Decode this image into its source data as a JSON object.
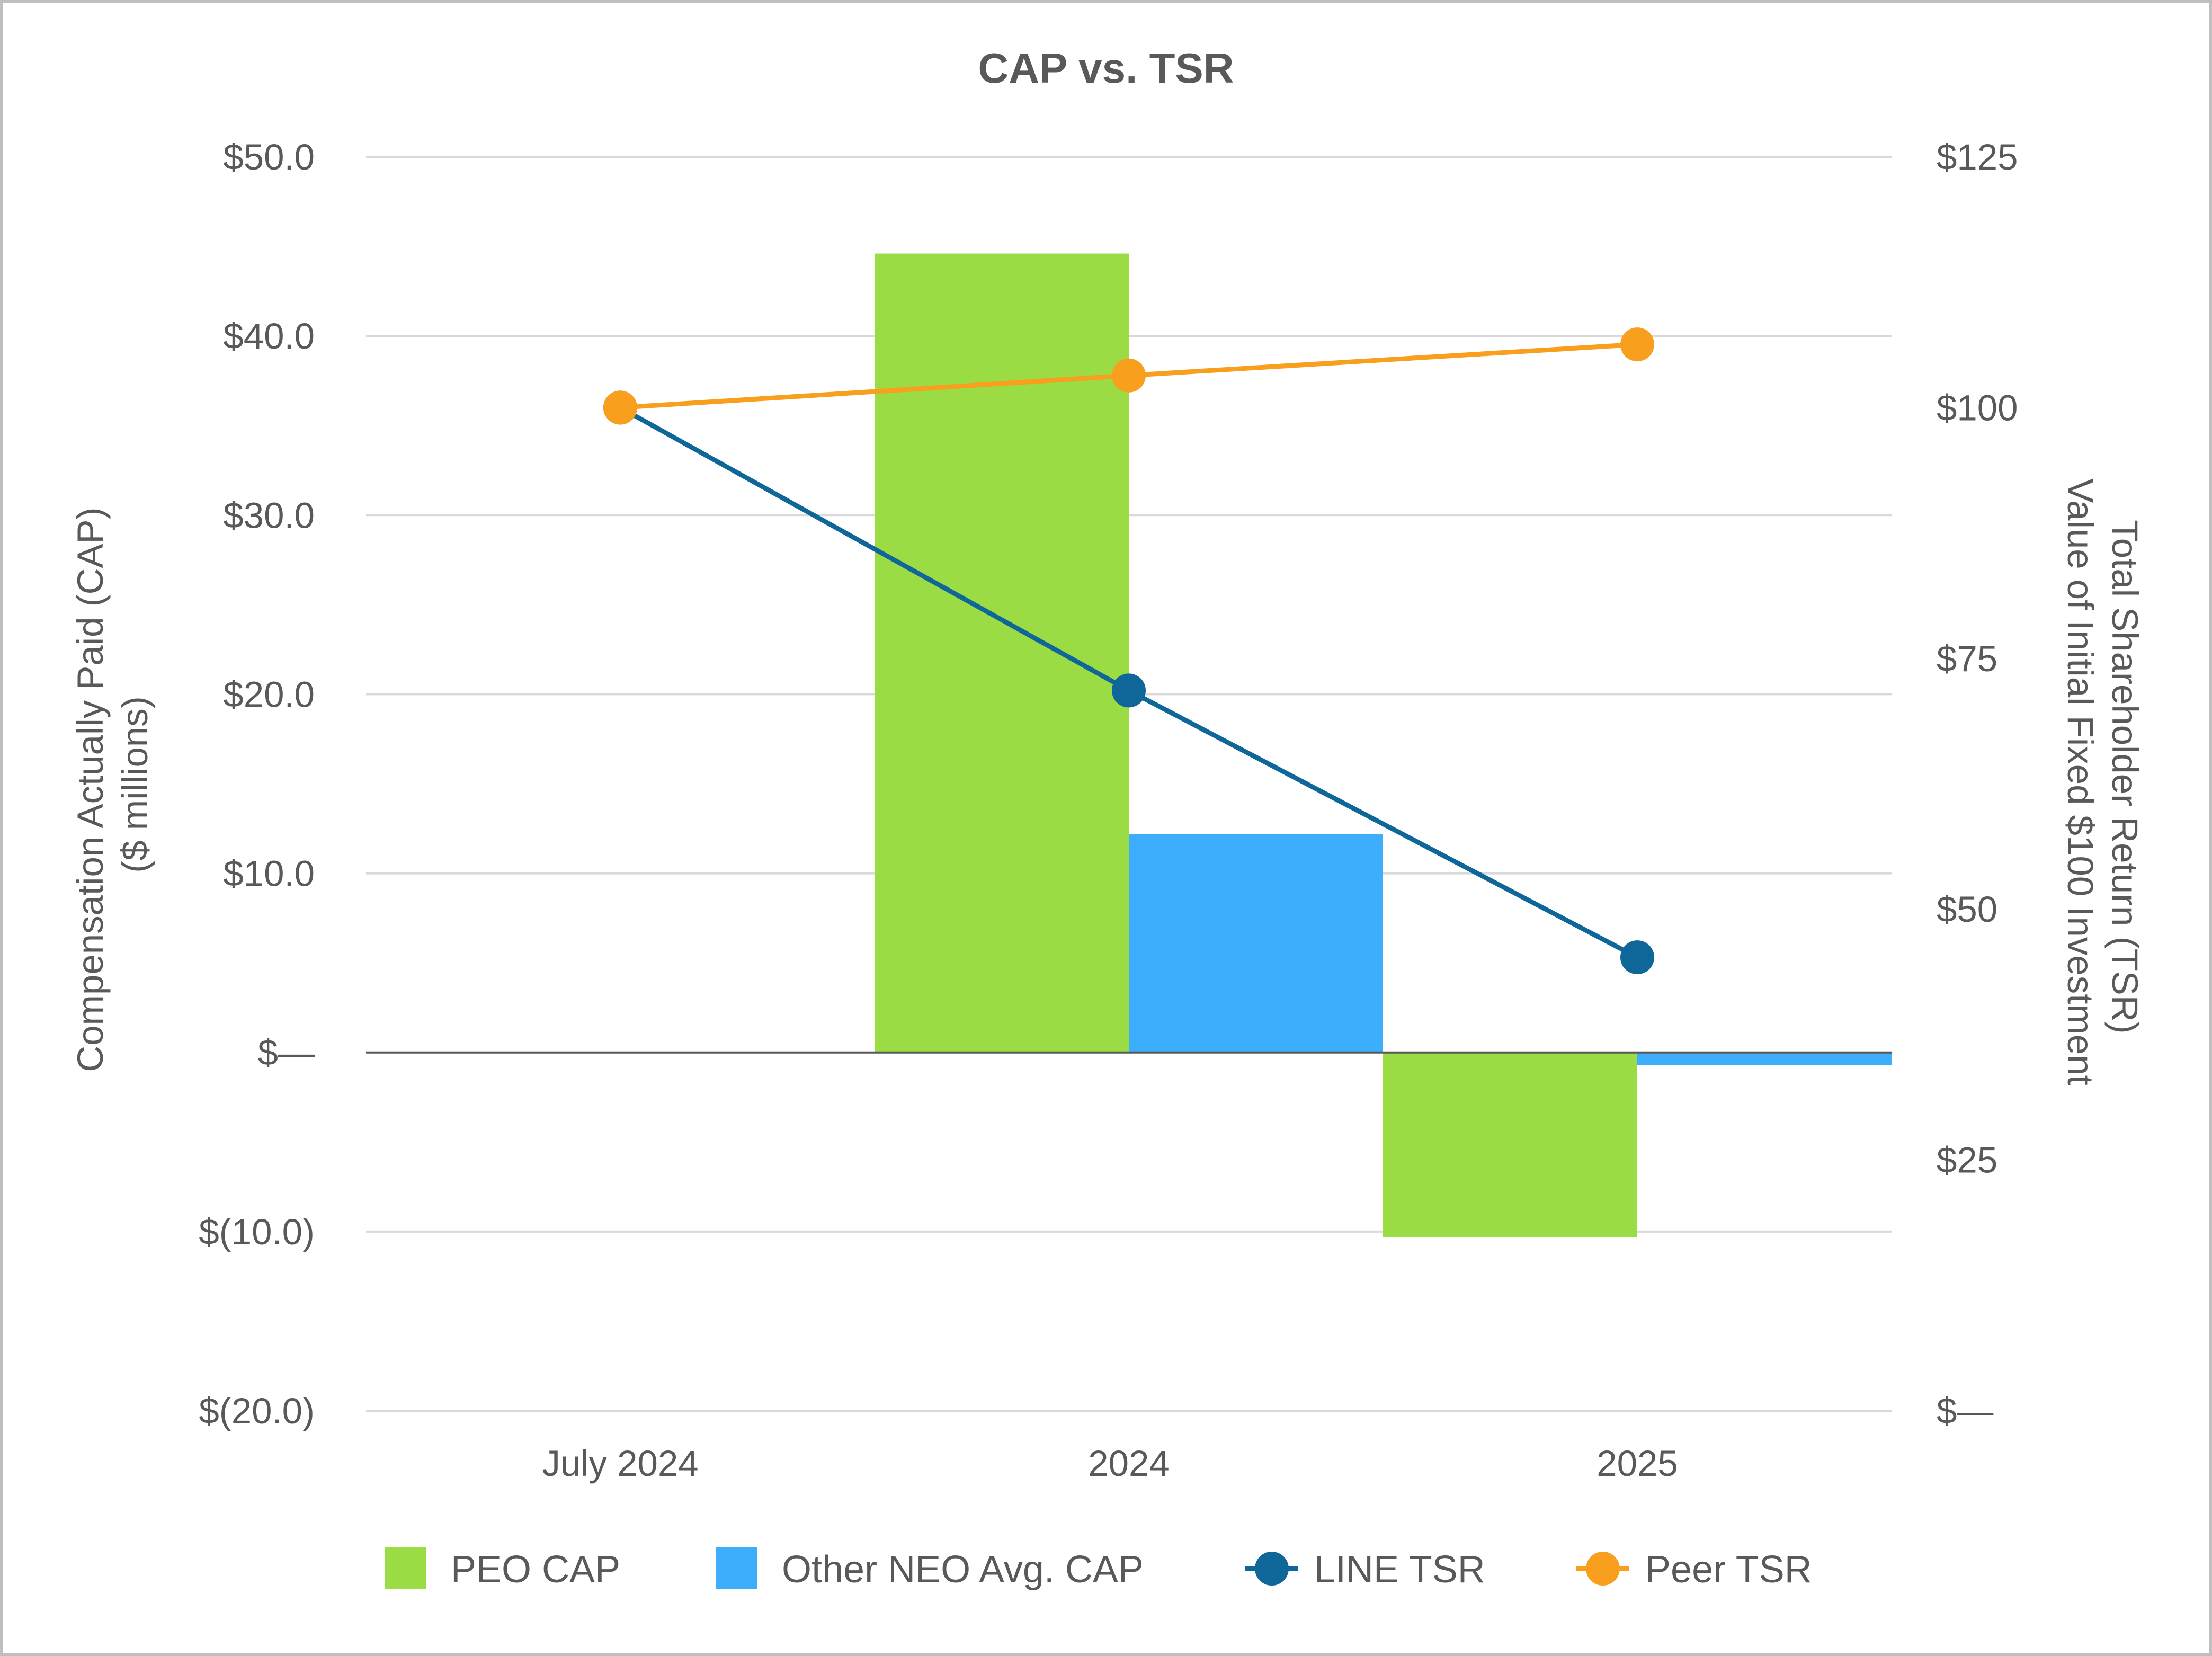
{
  "chart_data": {
    "type": "bar",
    "title": "CAP vs. TSR",
    "categories": [
      "July 2024",
      "2024",
      "2025"
    ],
    "y_left": {
      "label_lines": [
        "Compensation Actually Paid (CAP)",
        "($ millions)"
      ],
      "range": [
        -20,
        50
      ],
      "ticks": [
        50,
        40,
        30,
        20,
        10,
        0,
        -10,
        -20
      ],
      "tick_labels": [
        "$50.0",
        "$40.0",
        "$30.0",
        "$20.0",
        "$10.0",
        "$—",
        "$(10.0)",
        "$(20.0)"
      ]
    },
    "y_right": {
      "label_lines": [
        "Total Shareholder Return (TSR)",
        "Value of Initial Fixed $100 Investment"
      ],
      "range": [
        0,
        125
      ],
      "ticks": [
        125,
        100,
        75,
        50,
        25,
        0
      ],
      "tick_labels": [
        "$125",
        "$100",
        "$75",
        "$50",
        "$25",
        "$—"
      ]
    },
    "series": [
      {
        "name": "PEO CAP",
        "type": "bar",
        "axis": "left",
        "color": "#9bdb44",
        "values": [
          0,
          44.6,
          -10.3
        ]
      },
      {
        "name": "Other NEO Avg. CAP",
        "type": "bar",
        "axis": "left",
        "color": "#3daefb",
        "values": [
          0,
          12.2,
          -0.7
        ]
      },
      {
        "name": "LINE TSR",
        "type": "line",
        "axis": "right",
        "color": "#0e6699",
        "values": [
          100,
          71.8,
          45.2
        ]
      },
      {
        "name": "Peer TSR",
        "type": "line",
        "axis": "right",
        "color": "#f99f1e",
        "values": [
          100,
          103.2,
          106.3
        ]
      }
    ],
    "grid": true,
    "legend_position": "bottom"
  }
}
